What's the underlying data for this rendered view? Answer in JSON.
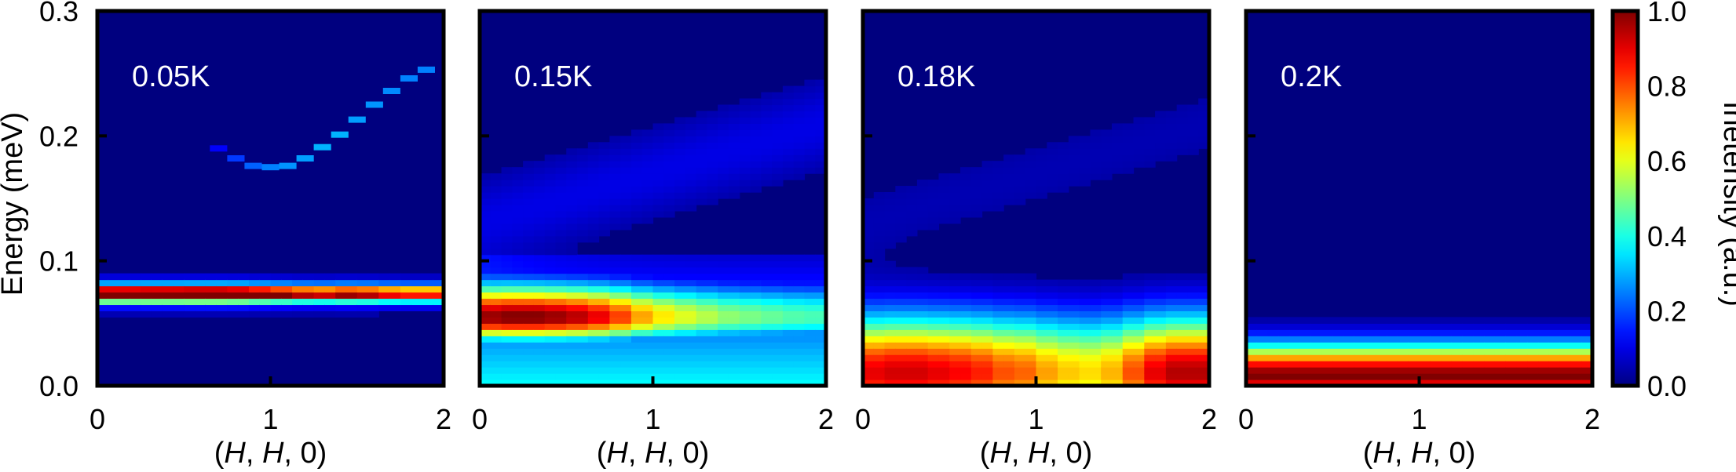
{
  "chart_data": {
    "type": "heatmap",
    "ylabel": "Energy (meV)",
    "ylim": [
      0.0,
      0.3
    ],
    "yticks": [
      "0.0",
      "0.1",
      "0.2",
      "0.3"
    ],
    "xlim": [
      0,
      2
    ],
    "xticks": [
      "0",
      "1",
      "2"
    ],
    "xlabel": {
      "prefix": "(",
      "h1": "H",
      "sep1": ", ",
      "h2": "H",
      "suffix": ", 0)"
    },
    "colorbar": {
      "label": "Inetensity (a.u.)",
      "range": [
        0.0,
        1.0
      ],
      "ticks": [
        "0.0",
        "0.2",
        "0.4",
        "0.6",
        "0.8",
        "1.0"
      ],
      "colormap": "jet"
    },
    "colors": {
      "background": "#00007f",
      "frame": "#000000",
      "label": "#ffffff"
    },
    "panels": [
      {
        "temperature": "0.05K",
        "flat_band": {
          "energy": 0.074,
          "width": 0.006,
          "intensity": [
            0.95,
            0.95,
            0.96,
            0.96,
            0.97,
            0.97,
            0.95,
            0.9,
            0.85,
            0.8,
            0.78,
            0.82,
            0.8,
            0.75,
            0.72,
            0.72
          ]
        },
        "dispersive_mode": {
          "h": [
            0.7,
            0.8,
            0.9,
            1.0,
            1.1,
            1.2,
            1.3,
            1.4,
            1.5,
            1.6,
            1.7,
            1.8,
            1.9
          ],
          "energy": [
            0.19,
            0.182,
            0.176,
            0.175,
            0.176,
            0.182,
            0.191,
            0.201,
            0.213,
            0.225,
            0.236,
            0.246,
            0.253
          ],
          "intensity": [
            0.12,
            0.18,
            0.22,
            0.25,
            0.27,
            0.28,
            0.3,
            0.3,
            0.28,
            0.27,
            0.26,
            0.25,
            0.25
          ]
        },
        "continuum": null
      },
      {
        "temperature": "0.15K",
        "flat_band": null,
        "dispersive_mode": null,
        "continuum": {
          "center": 0.055,
          "width": 0.025,
          "peak": [
            0.98,
            1.0,
            1.0,
            0.98,
            0.95,
            0.9,
            0.82,
            0.72,
            0.65,
            0.6,
            0.56,
            0.52,
            0.5,
            0.48,
            0.46,
            0.45
          ],
          "floor": 0.22,
          "diffuse": 0.1
        }
      },
      {
        "temperature": "0.18K",
        "flat_band": null,
        "dispersive_mode": null,
        "continuum": {
          "center": 0.01,
          "width": 0.045,
          "peak": [
            0.9,
            0.92,
            0.92,
            0.9,
            0.88,
            0.85,
            0.8,
            0.78,
            0.72,
            0.68,
            0.66,
            0.7,
            0.8,
            0.9,
            0.95,
            0.95
          ],
          "floor": 0.05,
          "diffuse": 0.05
        }
      },
      {
        "temperature": "0.2K",
        "flat_band": null,
        "dispersive_mode": null,
        "continuum": {
          "center": 0.008,
          "width": 0.025,
          "peak": [
            1.0,
            1.0,
            1.0,
            1.0,
            1.0,
            1.0,
            1.0,
            1.0,
            1.0,
            1.0,
            1.0,
            1.0,
            1.0,
            1.0,
            1.0,
            1.0
          ],
          "floor": 0.05,
          "diffuse": 0.02
        }
      }
    ]
  }
}
